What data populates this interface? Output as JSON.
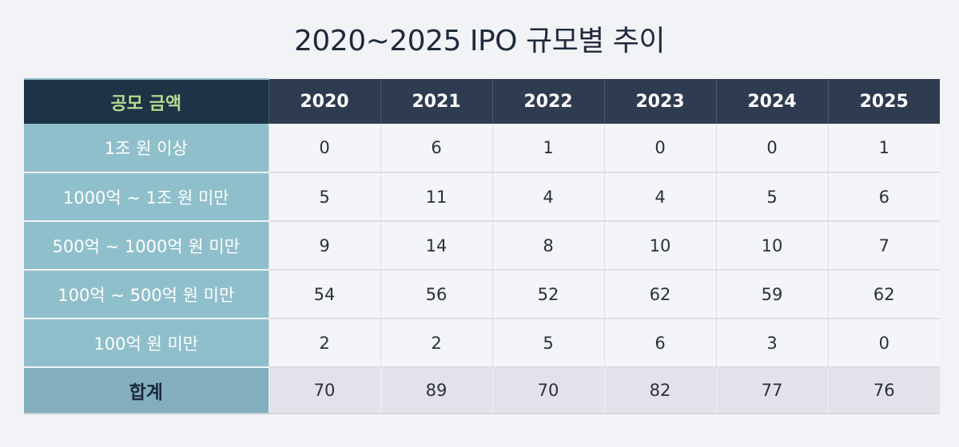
{
  "title": "2020~2025 IPO 규모별 추이",
  "header": {
    "corner": "공모 금액",
    "years": [
      "2020",
      "2021",
      "2022",
      "2023",
      "2024",
      "2025"
    ]
  },
  "rows": [
    {
      "label": "1조 원 이상",
      "values": [
        "0",
        "6",
        "1",
        "0",
        "0",
        "1"
      ]
    },
    {
      "label": "1000억 ~ 1조 원 미만",
      "values": [
        "5",
        "11",
        "4",
        "4",
        "5",
        "6"
      ]
    },
    {
      "label": "500억 ~ 1000억 원 미만",
      "values": [
        "9",
        "14",
        "8",
        "10",
        "10",
        "7"
      ]
    },
    {
      "label": "100억 ~ 500억 원 미만",
      "values": [
        "54",
        "56",
        "52",
        "62",
        "59",
        "62"
      ]
    },
    {
      "label": "100억 원 미만",
      "values": [
        "2",
        "2",
        "5",
        "6",
        "3",
        "0"
      ]
    }
  ],
  "total": {
    "label": "합계",
    "values": [
      "70",
      "89",
      "70",
      "82",
      "77",
      "76"
    ]
  },
  "colors": {
    "header_corner_bg": "#1e3346",
    "header_corner_text": "#b7d98f",
    "header_bg": "#2f3b51",
    "row_label_bg": "#8fbfcb",
    "total_label_bg": "#82aebd",
    "total_row_bg": "#e3e2ea"
  }
}
